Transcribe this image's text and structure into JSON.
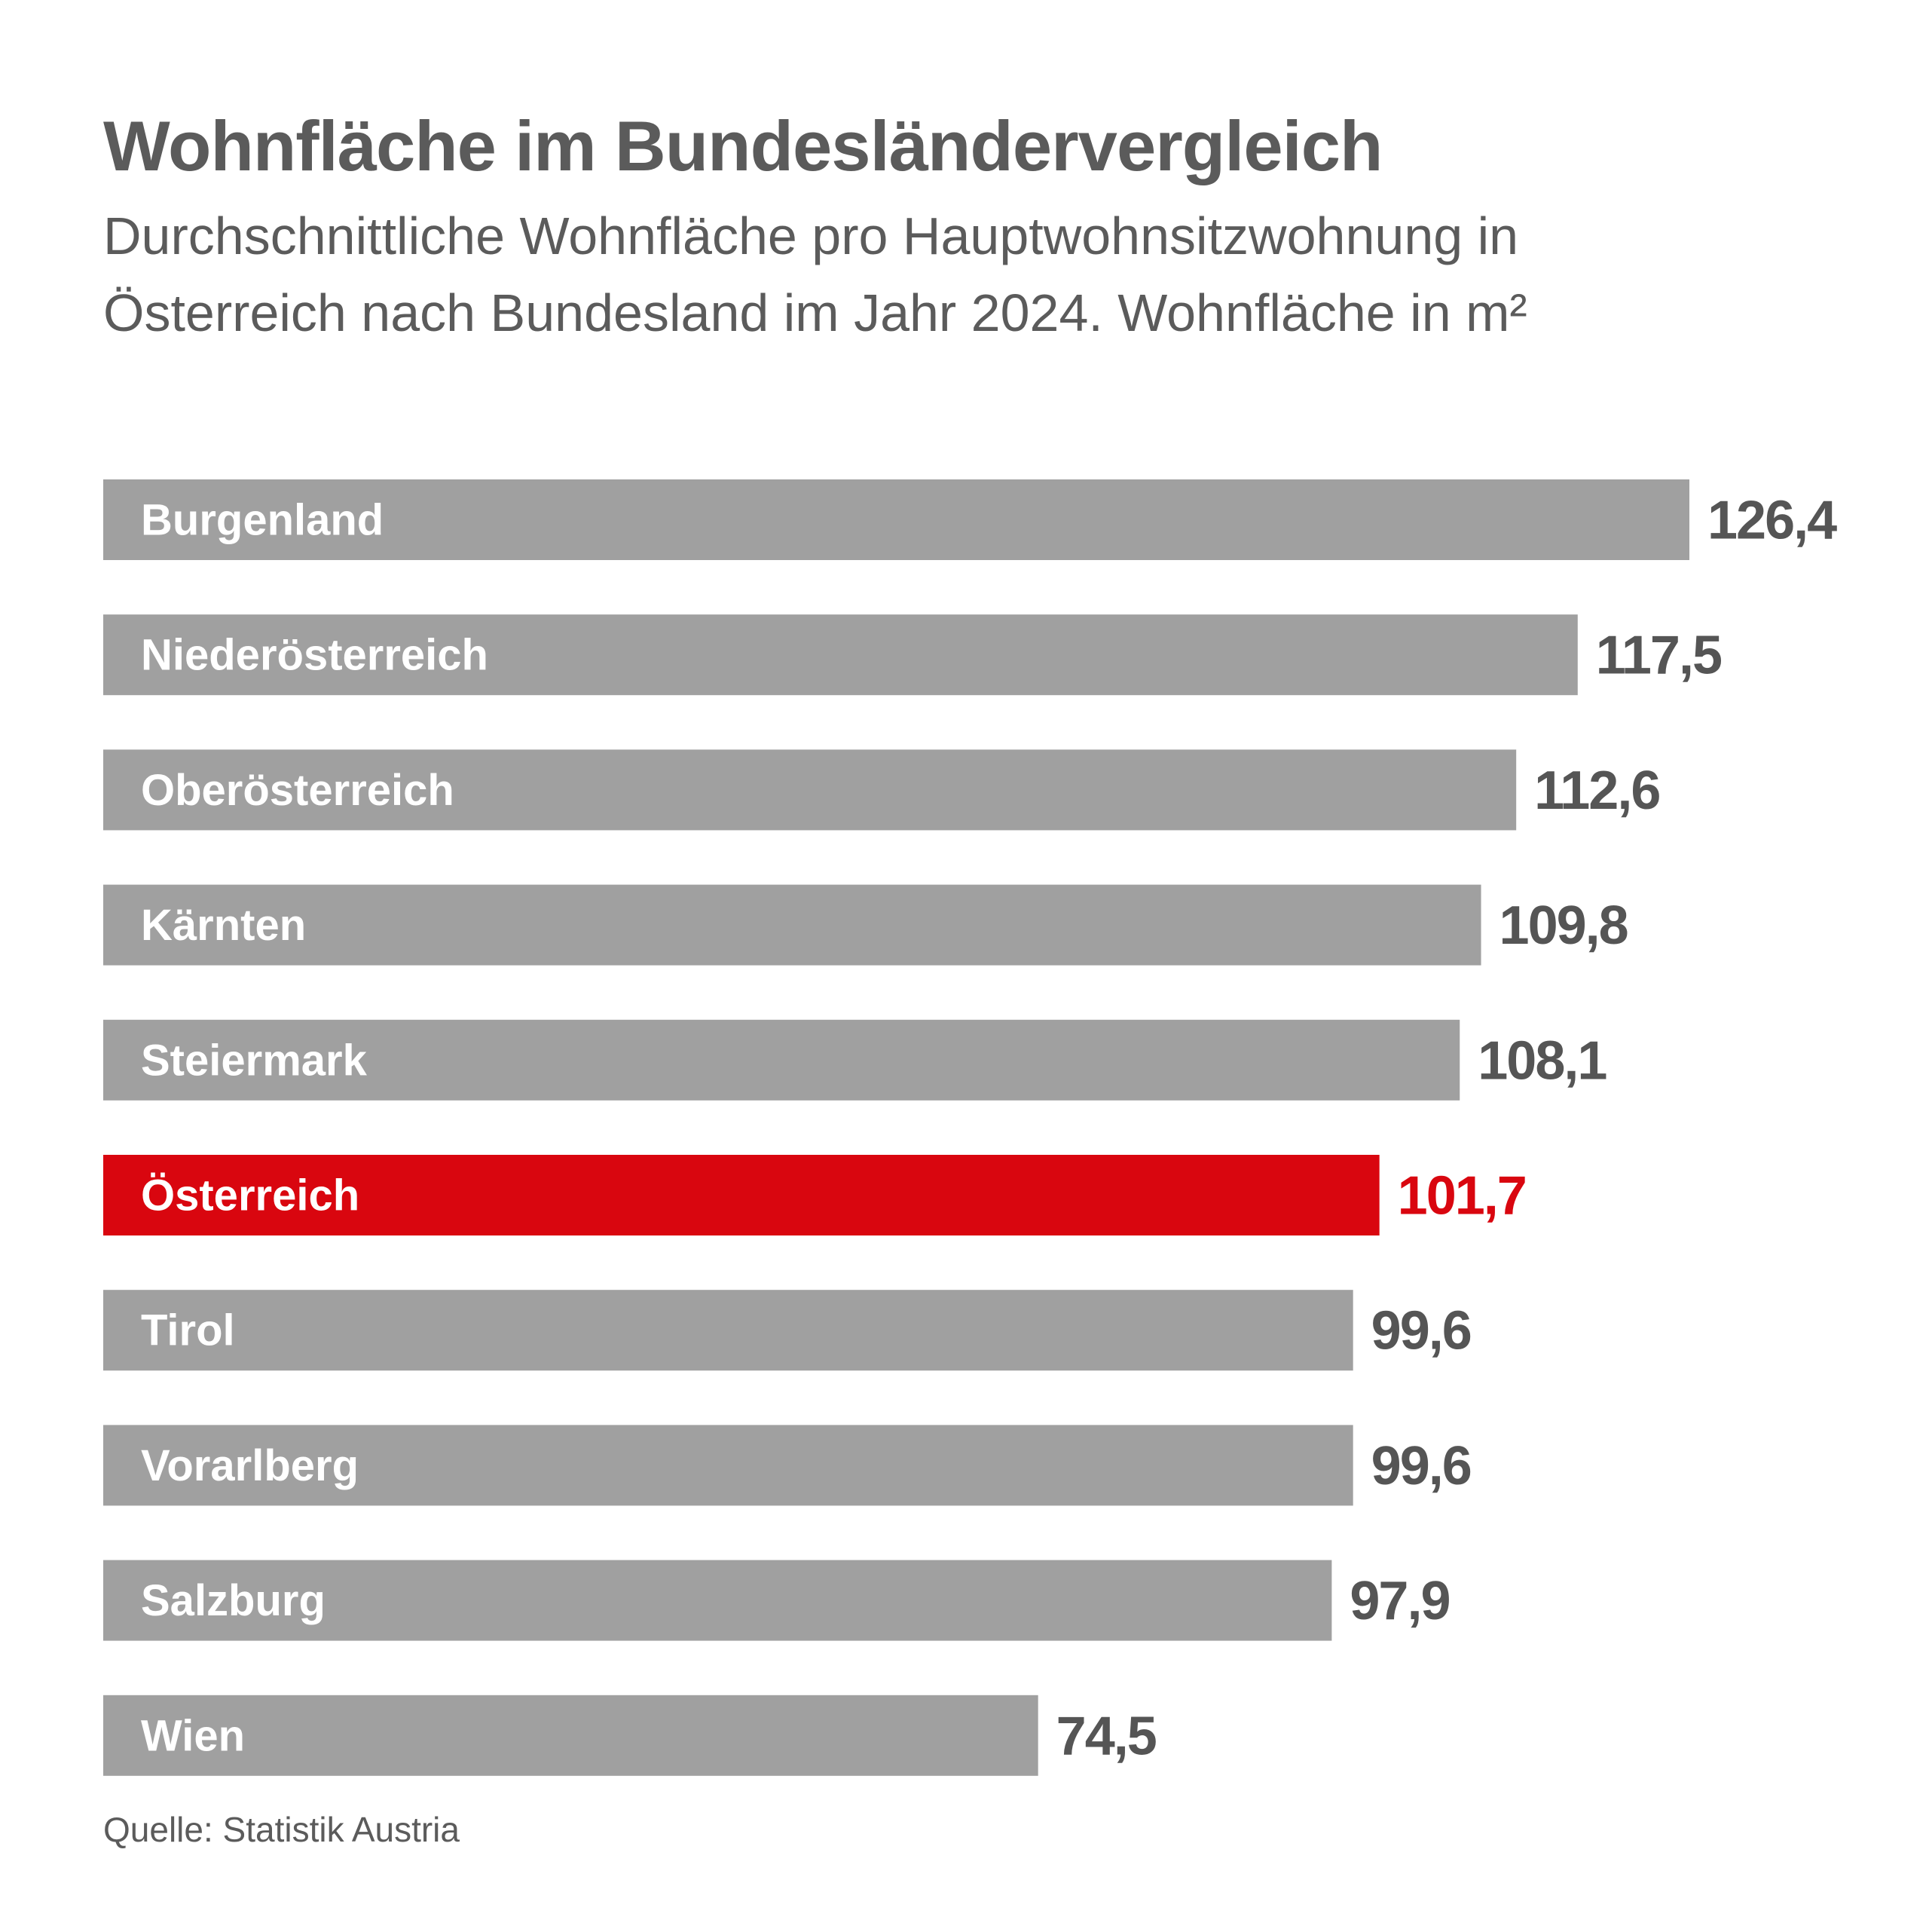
{
  "chart_data": {
    "type": "bar",
    "orientation": "horizontal",
    "title": "Wohnfläche im Bundesländervergleich",
    "subtitle_lines": [
      "Durchschnittliche Wohnfläche pro Hauptwohnsitzwohnung in",
      "Österreich nach Bundesland im Jahr 2024. Wohnfläche in m²"
    ],
    "categories": [
      "Burgenland",
      "Niederösterreich",
      "Oberösterreich",
      "Kärnten",
      "Steiermark",
      "Österreich",
      "Tirol",
      "Vorarlberg",
      "Salzburg",
      "Wien"
    ],
    "values": [
      126.4,
      117.5,
      112.6,
      109.8,
      108.1,
      101.7,
      99.6,
      99.6,
      97.9,
      74.5
    ],
    "value_labels": [
      "126,4",
      "117,5",
      "112,6",
      "109,8",
      "108,1",
      "101,7",
      "99,6",
      "99,6",
      "97,9",
      "74,5"
    ],
    "highlight": "Österreich",
    "xlim": [
      0,
      126.4
    ],
    "grid": false,
    "legend": "none",
    "source": "Quelle: Statistik Austria",
    "colors": {
      "bar": "#a0a0a0",
      "highlight": "#d9060f",
      "bar_label": "#ffffff",
      "value_label": "#555555",
      "text": "#5b5b5b"
    }
  }
}
